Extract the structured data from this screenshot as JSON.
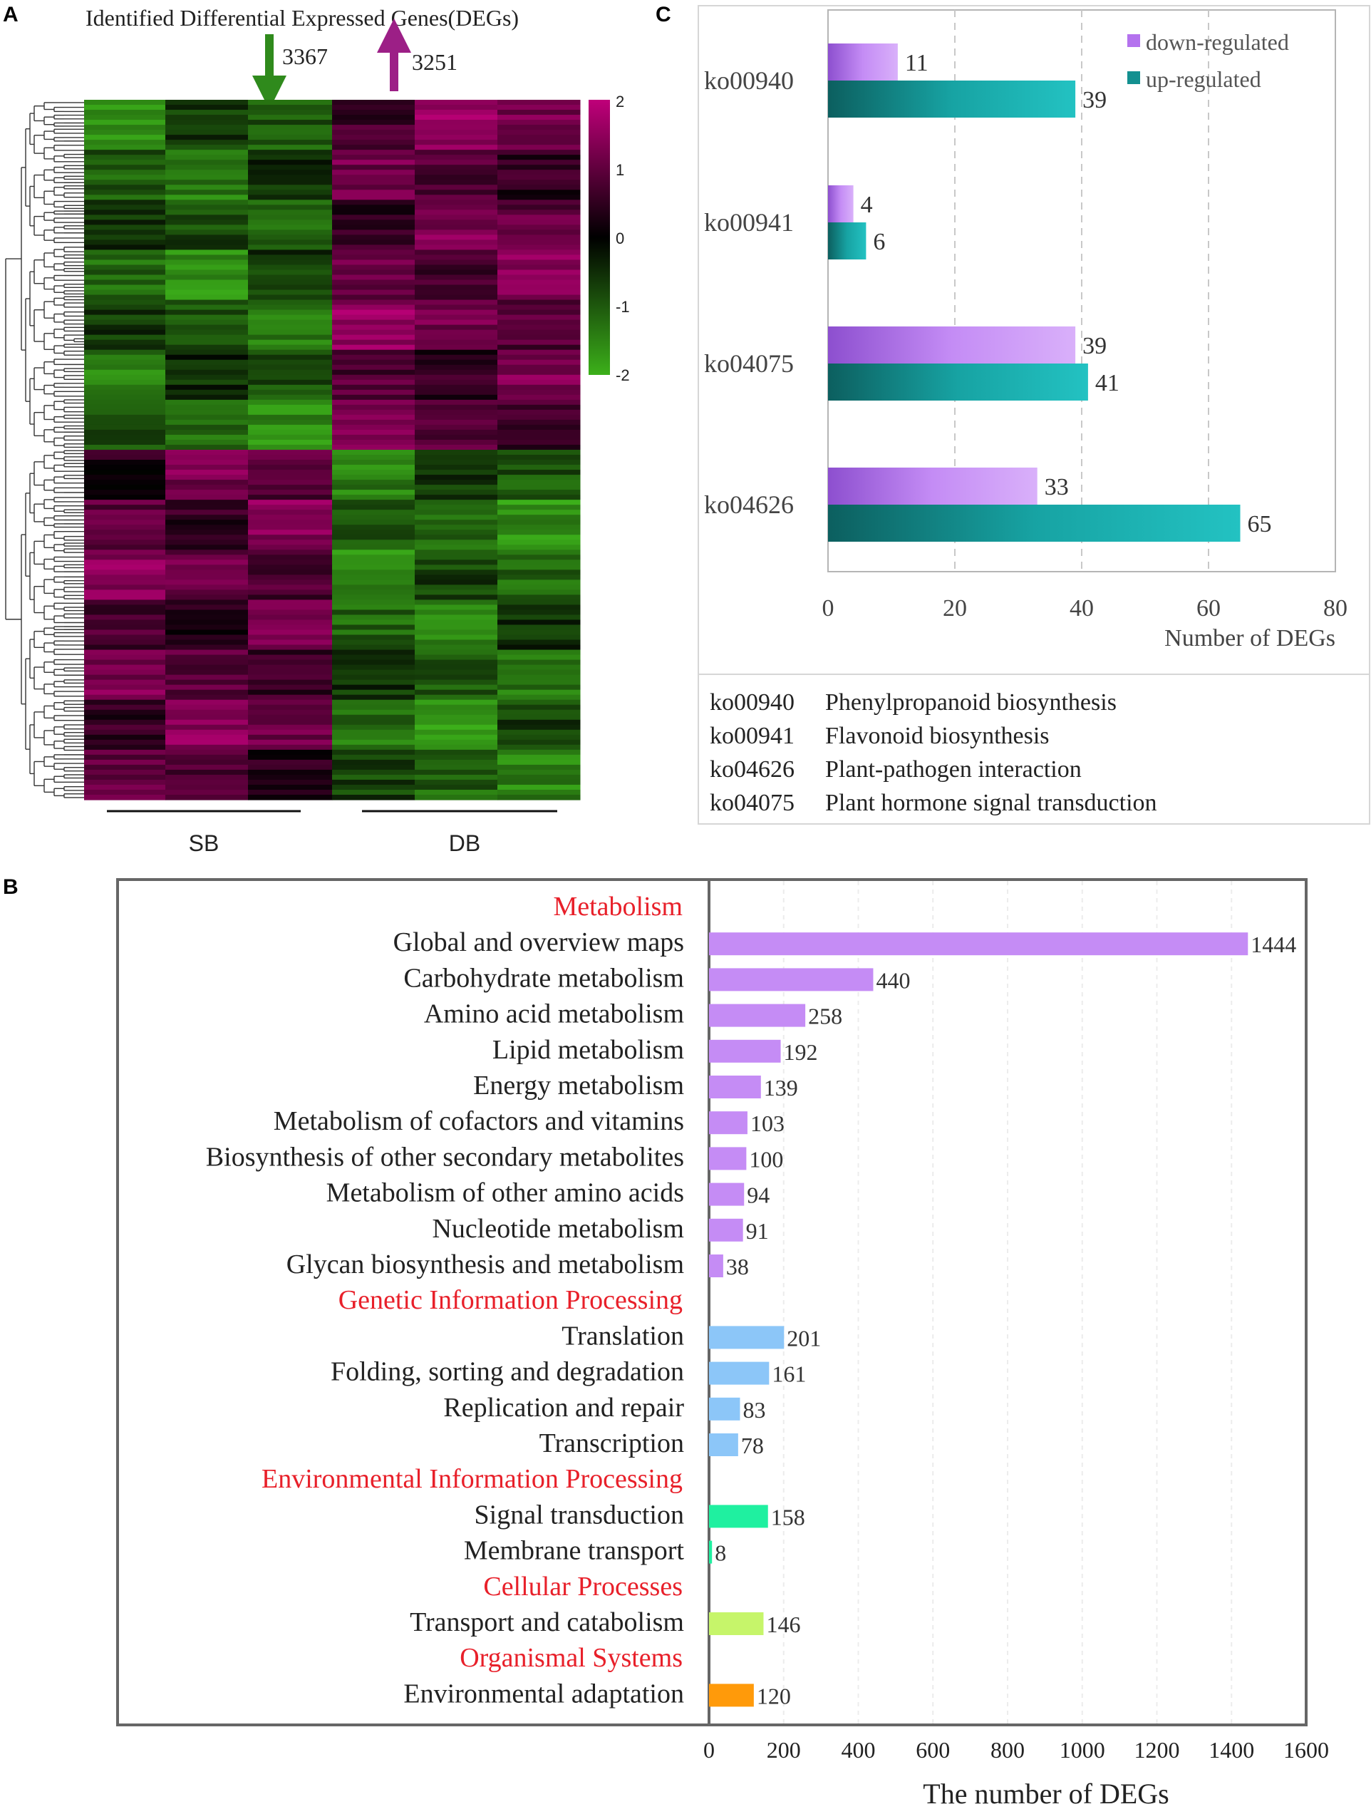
{
  "panels": {
    "a": "A",
    "b": "B",
    "c": "C"
  },
  "heatmap": {
    "title": "Identified Differential Expressed Genes(DEGs)",
    "down_count": "3367",
    "up_count": "3251",
    "colorbar_ticks": [
      "2",
      "1",
      "0",
      "-1",
      "-2"
    ],
    "groups": [
      "SB",
      "DB"
    ],
    "colors": {
      "low": "#3cb01a",
      "mid": "#000000",
      "high": "#c0007a"
    }
  },
  "kegg_c": {
    "legend": {
      "down": "down-regulated",
      "up": "up-regulated"
    },
    "definitions": [
      {
        "code": "ko00940",
        "name": "Phenylpropanoid biosynthesis"
      },
      {
        "code": "ko00941",
        "name": "Flavonoid biosynthesis"
      },
      {
        "code": "ko04626",
        "name": "Plant-pathogen interaction"
      },
      {
        "code": "ko04075",
        "name": "Plant hormone signal transduction"
      }
    ]
  },
  "kegg_b": {
    "headers": [
      {
        "label": "Metabolism"
      },
      {
        "label": "Genetic Information Processing"
      },
      {
        "label": "Environmental Information Processing"
      },
      {
        "label": "Cellular Processes"
      },
      {
        "label": "Organismal Systems"
      }
    ]
  },
  "chart_data": [
    {
      "type": "bar",
      "orientation": "horizontal",
      "panel": "C",
      "categories": [
        "ko00940",
        "ko00941",
        "ko04075",
        "ko04626"
      ],
      "series": [
        {
          "name": "down-regulated",
          "values": [
            11,
            4,
            39,
            33
          ],
          "color": "#c58cf5"
        },
        {
          "name": "up-regulated",
          "values": [
            39,
            6,
            41,
            65
          ],
          "color": "#149a9a"
        }
      ],
      "xlabel": "Number of DEGs",
      "xlim": [
        0,
        80
      ],
      "xticks": [
        0,
        20,
        40,
        60,
        80
      ],
      "grid": true,
      "legend": "top-right"
    },
    {
      "type": "bar",
      "orientation": "horizontal",
      "panel": "B",
      "categories": [
        "Global and overview maps",
        "Carbohydrate metabolism",
        "Amino acid metabolism",
        "Lipid metabolism",
        "Energy metabolism",
        "Metabolism of cofactors and vitamins",
        "Biosynthesis of other secondary metabolites",
        "Metabolism of other amino acids",
        "Nucleotide metabolism",
        "Glycan biosynthesis and metabolism",
        "Translation",
        "Folding, sorting and degradation",
        "Replication and repair",
        "Transcription",
        "Signal transduction",
        "Membrane transport",
        "Transport and catabolism",
        "Environmental adaptation"
      ],
      "values": [
        1444,
        440,
        258,
        192,
        139,
        103,
        100,
        94,
        91,
        38,
        201,
        161,
        83,
        78,
        158,
        8,
        146,
        120
      ],
      "groups": [
        {
          "name": "Metabolism",
          "count": 10,
          "color": "#c58cf5"
        },
        {
          "name": "Genetic Information Processing",
          "count": 4,
          "color": "#8cc6f8"
        },
        {
          "name": "Environmental Information Processing",
          "count": 2,
          "color": "#1ff0a0"
        },
        {
          "name": "Cellular Processes",
          "count": 1,
          "color": "#c6f56a"
        },
        {
          "name": "Organismal Systems",
          "count": 1,
          "color": "#ff9a0a"
        }
      ],
      "xlabel": "The number of DEGs",
      "xlim": [
        0,
        1600
      ],
      "xticks": [
        0,
        200,
        400,
        600,
        800,
        1000,
        1200,
        1400,
        1600
      ],
      "grid": true
    }
  ]
}
